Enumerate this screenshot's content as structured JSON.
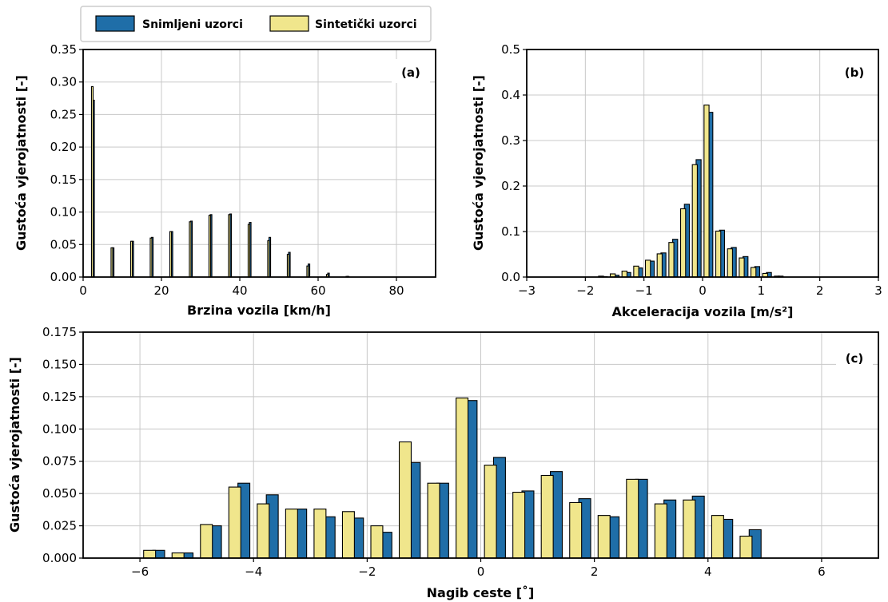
{
  "legend": {
    "series": [
      {
        "label": "Snimljeni uzorci",
        "color": "#1f6ea8"
      },
      {
        "label": "Sintetički uzorci",
        "color": "#f0e68c"
      }
    ]
  },
  "chart_data": [
    {
      "type": "bar",
      "panel": "(a)",
      "xlabel": "Brzina vozila [km/h]",
      "ylabel": "Gustoća vjerojatnosti [-]",
      "xlim": [
        0,
        90
      ],
      "ylim": [
        0,
        0.35
      ],
      "xticks": [
        0,
        20,
        40,
        60,
        80
      ],
      "yticks": [
        0.0,
        0.05,
        0.1,
        0.15,
        0.2,
        0.25,
        0.3,
        0.35
      ],
      "ytick_decimals": 2,
      "grid": true,
      "series": [
        {
          "name": "Snimljeni uzorci",
          "x": [
            2.5,
            7.5,
            12.5,
            17.5,
            22.5,
            27.5,
            32.5,
            37.5,
            42.5,
            47.5,
            52.5,
            57.5,
            62.5,
            67.5
          ],
          "values": [
            0.272,
            0.045,
            0.055,
            0.061,
            0.07,
            0.086,
            0.096,
            0.097,
            0.084,
            0.061,
            0.038,
            0.02,
            0.006,
            0.001
          ]
        },
        {
          "name": "Sintetički uzorci",
          "x": [
            2.5,
            7.5,
            12.5,
            17.5,
            22.5,
            27.5,
            32.5,
            37.5,
            42.5,
            47.5,
            52.5,
            57.5,
            62.5,
            67.5
          ],
          "values": [
            0.293,
            0.045,
            0.055,
            0.06,
            0.07,
            0.085,
            0.095,
            0.096,
            0.081,
            0.056,
            0.035,
            0.017,
            0.004,
            0.001
          ]
        }
      ]
    },
    {
      "type": "bar",
      "panel": "(b)",
      "xlabel": "Akceleracija vozila [m/s²]",
      "ylabel": "Gustoća vjerojatnosti [-]",
      "xlim": [
        -3,
        3
      ],
      "ylim": [
        0,
        0.5
      ],
      "xticks": [
        -3,
        -2,
        -1,
        0,
        1,
        2,
        3
      ],
      "yticks": [
        0.0,
        0.1,
        0.2,
        0.3,
        0.4,
        0.5
      ],
      "ytick_decimals": 1,
      "grid": true,
      "series": [
        {
          "name": "Snimljeni uzorci",
          "x": [
            -1.7,
            -1.5,
            -1.3,
            -1.1,
            -0.9,
            -0.7,
            -0.5,
            -0.3,
            -0.1,
            0.1,
            0.3,
            0.5,
            0.7,
            0.9,
            1.1,
            1.3,
            1.5
          ],
          "values": [
            0.001,
            0.004,
            0.01,
            0.02,
            0.035,
            0.053,
            0.083,
            0.16,
            0.258,
            0.362,
            0.103,
            0.065,
            0.045,
            0.023,
            0.01,
            0.002,
            0.0
          ]
        },
        {
          "name": "Sintetički uzorci",
          "x": [
            -1.7,
            -1.5,
            -1.3,
            -1.1,
            -0.9,
            -0.7,
            -0.5,
            -0.3,
            -0.1,
            0.1,
            0.3,
            0.5,
            0.7,
            0.9,
            1.1,
            1.3,
            1.5
          ],
          "values": [
            0.002,
            0.007,
            0.013,
            0.024,
            0.037,
            0.051,
            0.076,
            0.15,
            0.247,
            0.378,
            0.101,
            0.062,
            0.042,
            0.021,
            0.008,
            0.002,
            0.0
          ]
        }
      ]
    },
    {
      "type": "bar",
      "panel": "(c)",
      "xlabel": "Nagib ceste [˚]",
      "ylabel": "Gustoća vjerojatnosti [-]",
      "xlim": [
        -7,
        7
      ],
      "ylim": [
        0,
        0.175
      ],
      "xticks": [
        -6,
        -4,
        -2,
        0,
        2,
        4,
        6
      ],
      "yticks": [
        0.0,
        0.025,
        0.05,
        0.075,
        0.1,
        0.125,
        0.15,
        0.175
      ],
      "ytick_decimals": 3,
      "grid": true,
      "series": [
        {
          "name": "Snimljeni uzorci",
          "x": [
            -5.75,
            -5.25,
            -4.75,
            -4.25,
            -3.75,
            -3.25,
            -2.75,
            -2.25,
            -1.75,
            -1.25,
            -0.75,
            -0.25,
            0.25,
            0.75,
            1.25,
            1.75,
            2.25,
            2.75,
            3.25,
            3.75,
            4.25,
            4.75
          ],
          "values": [
            0.006,
            0.004,
            0.025,
            0.058,
            0.049,
            0.038,
            0.032,
            0.031,
            0.02,
            0.074,
            0.058,
            0.122,
            0.078,
            0.052,
            0.067,
            0.046,
            0.032,
            0.061,
            0.045,
            0.048,
            0.03,
            0.022
          ]
        },
        {
          "name": "Sintetički uzorci",
          "x": [
            -5.75,
            -5.25,
            -4.75,
            -4.25,
            -3.75,
            -3.25,
            -2.75,
            -2.25,
            -1.75,
            -1.25,
            -0.75,
            -0.25,
            0.25,
            0.75,
            1.25,
            1.75,
            2.25,
            2.75,
            3.25,
            3.75,
            4.25,
            4.75
          ],
          "values": [
            0.006,
            0.004,
            0.026,
            0.055,
            0.042,
            0.038,
            0.038,
            0.036,
            0.025,
            0.09,
            0.058,
            0.124,
            0.072,
            0.051,
            0.064,
            0.043,
            0.033,
            0.061,
            0.042,
            0.045,
            0.033,
            0.017
          ]
        }
      ]
    }
  ]
}
